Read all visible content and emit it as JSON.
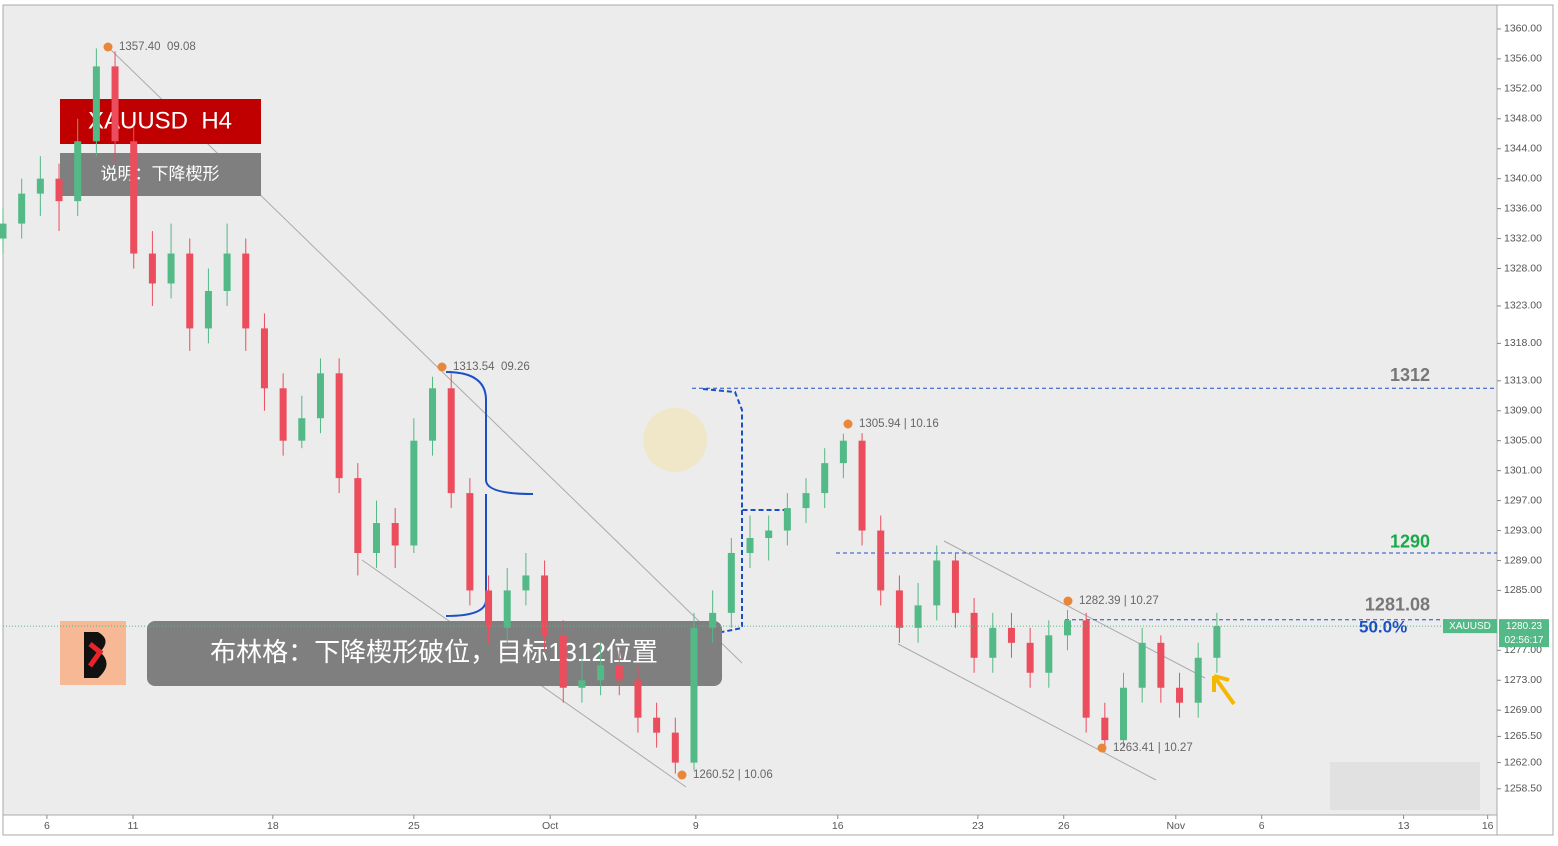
{
  "chart_data": {
    "type": "candlestick",
    "x": [
      0,
      1,
      2,
      3,
      4,
      5,
      6,
      7,
      8,
      9,
      10,
      11,
      12,
      13,
      14,
      15,
      16,
      17,
      18,
      19,
      20,
      21,
      22,
      23,
      24,
      25,
      26,
      27,
      28,
      29,
      30,
      31,
      32,
      33,
      34,
      35,
      36,
      37,
      38,
      39,
      40,
      41,
      42,
      43,
      44,
      45,
      46,
      47,
      48,
      49,
      50,
      51,
      52,
      53,
      54,
      55,
      56,
      57,
      58,
      59,
      60,
      61,
      62,
      63,
      64,
      65
    ],
    "ohlc": [
      [
        1332,
        1336,
        1330,
        1334
      ],
      [
        1334,
        1340,
        1332,
        1338
      ],
      [
        1338,
        1343,
        1335,
        1340
      ],
      [
        1340,
        1342,
        1333,
        1337
      ],
      [
        1337,
        1348,
        1335,
        1345
      ],
      [
        1345,
        1357.4,
        1343,
        1355
      ],
      [
        1355,
        1357,
        1342,
        1345
      ],
      [
        1345,
        1347,
        1328,
        1330
      ],
      [
        1330,
        1333,
        1323,
        1326
      ],
      [
        1326,
        1334,
        1324,
        1330
      ],
      [
        1330,
        1332,
        1317,
        1320
      ],
      [
        1320,
        1328,
        1318,
        1325
      ],
      [
        1325,
        1334,
        1323,
        1330
      ],
      [
        1330,
        1332,
        1317,
        1320
      ],
      [
        1320,
        1322,
        1309,
        1312
      ],
      [
        1312,
        1314,
        1303,
        1305
      ],
      [
        1305,
        1311,
        1304,
        1308
      ],
      [
        1308,
        1316,
        1306,
        1314
      ],
      [
        1314,
        1316,
        1298,
        1300
      ],
      [
        1300,
        1302,
        1287,
        1290
      ],
      [
        1290,
        1297,
        1288,
        1294
      ],
      [
        1294,
        1296,
        1288,
        1291
      ],
      [
        1291,
        1308,
        1290,
        1305
      ],
      [
        1305,
        1313.54,
        1303,
        1312
      ],
      [
        1312,
        1314,
        1296,
        1298
      ],
      [
        1298,
        1300,
        1283,
        1285
      ],
      [
        1285,
        1287,
        1278,
        1280
      ],
      [
        1280,
        1288,
        1278,
        1285
      ],
      [
        1285,
        1290,
        1283,
        1287
      ],
      [
        1287,
        1289,
        1277,
        1279
      ],
      [
        1279,
        1281,
        1270,
        1272
      ],
      [
        1272,
        1276,
        1270,
        1273
      ],
      [
        1273,
        1278,
        1271,
        1275
      ],
      [
        1275,
        1277,
        1271,
        1273
      ],
      [
        1273,
        1275,
        1266,
        1268
      ],
      [
        1268,
        1270,
        1264,
        1266
      ],
      [
        1266,
        1268,
        1260.52,
        1262
      ],
      [
        1262,
        1282,
        1261,
        1280
      ],
      [
        1280,
        1285,
        1278,
        1282
      ],
      [
        1282,
        1292,
        1280,
        1290
      ],
      [
        1290,
        1295,
        1288,
        1292
      ],
      [
        1292,
        1295,
        1289,
        1293
      ],
      [
        1293,
        1298,
        1291,
        1296
      ],
      [
        1296,
        1300,
        1294,
        1298
      ],
      [
        1298,
        1304,
        1296,
        1302
      ],
      [
        1302,
        1305.94,
        1300,
        1305
      ],
      [
        1305,
        1306,
        1291,
        1293
      ],
      [
        1293,
        1295,
        1283,
        1285
      ],
      [
        1285,
        1287,
        1278,
        1280
      ],
      [
        1280,
        1286,
        1278,
        1283
      ],
      [
        1283,
        1291,
        1281,
        1289
      ],
      [
        1289,
        1290,
        1280,
        1282
      ],
      [
        1282,
        1284,
        1274,
        1276
      ],
      [
        1276,
        1282,
        1274,
        1280
      ],
      [
        1280,
        1282,
        1276,
        1278
      ],
      [
        1278,
        1280,
        1272,
        1274
      ],
      [
        1274,
        1281,
        1272,
        1279
      ],
      [
        1279,
        1282.39,
        1277,
        1281
      ],
      [
        1281,
        1282,
        1266,
        1268
      ],
      [
        1268,
        1270,
        1263.41,
        1265
      ],
      [
        1265,
        1274,
        1264,
        1272
      ],
      [
        1272,
        1280,
        1270,
        1278
      ],
      [
        1278,
        1279,
        1270,
        1272
      ],
      [
        1272,
        1274,
        1268,
        1270
      ],
      [
        1270,
        1278,
        1268,
        1276
      ],
      [
        1276,
        1282,
        1274,
        1280.23
      ]
    ],
    "up_color": "#53b987",
    "down_color": "#eb4d5c",
    "xlim": [
      0,
      80
    ],
    "xticks": [
      {
        "value": 2.35,
        "label": "6"
      },
      {
        "value": 6.96,
        "label": "11"
      },
      {
        "value": 14.45,
        "label": "18"
      },
      {
        "value": 22.0,
        "label": "25"
      },
      {
        "value": 29.3,
        "label": "Oct"
      },
      {
        "value": 37.1,
        "label": "9"
      },
      {
        "value": 44.7,
        "label": "16"
      },
      {
        "value": 52.2,
        "label": "23"
      },
      {
        "value": 56.8,
        "label": "26"
      },
      {
        "value": 62.8,
        "label": "Nov"
      },
      {
        "value": 67.4,
        "label": "6"
      },
      {
        "value": 75.0,
        "label": "13"
      },
      {
        "value": 79.5,
        "label": "16"
      }
    ],
    "ylim": [
      1255.0,
      1363.2
    ],
    "yticks": [
      {
        "value": 1360,
        "label": "1360.00"
      },
      {
        "value": 1356,
        "label": "1356.00"
      },
      {
        "value": 1352,
        "label": "1352.00"
      },
      {
        "value": 1348,
        "label": "1348.00"
      },
      {
        "value": 1344,
        "label": "1344.00"
      },
      {
        "value": 1340,
        "label": "1340.00"
      },
      {
        "value": 1336,
        "label": "1336.00"
      },
      {
        "value": 1332,
        "label": "1332.00"
      },
      {
        "value": 1328,
        "label": "1328.00"
      },
      {
        "value": 1323,
        "label": "1323.00"
      },
      {
        "value": 1318,
        "label": "1318.00"
      },
      {
        "value": 1313,
        "label": "1313.00"
      },
      {
        "value": 1309,
        "label": "1309.00"
      },
      {
        "value": 1305,
        "label": "1305.00"
      },
      {
        "value": 1301,
        "label": "1301.00"
      },
      {
        "value": 1297,
        "label": "1297.00"
      },
      {
        "value": 1293,
        "label": "1293.00"
      },
      {
        "value": 1289,
        "label": "1289.00"
      },
      {
        "value": 1285,
        "label": "1285.00"
      },
      {
        "value": 1277,
        "label": "1277.00"
      },
      {
        "value": 1273,
        "label": "1273.00"
      },
      {
        "value": 1269,
        "label": "1269.00"
      },
      {
        "value": 1265.5,
        "label": "1265.50"
      },
      {
        "value": 1262,
        "label": "1262.00"
      },
      {
        "value": 1258.5,
        "label": "1258.50"
      }
    ],
    "grid": false,
    "levels": [
      {
        "value": 1312,
        "color": "#777777"
      },
      {
        "value": 1290,
        "color": "#1aa84a"
      },
      {
        "value": 1281.08,
        "color": "#777777"
      }
    ],
    "fib_label": "50.0%",
    "symbol": "XAUUSD",
    "countdown": "02:56:17",
    "annotations": [
      "1357.40  09.08",
      "1313.54  09.26",
      "1305.94 | 10.16",
      "1282.39 | 10.27",
      "1263.41 | 10.27",
      "1260.52 | 10.06"
    ],
    "title": "XAUUSD  H4",
    "subtitle": "说明：下降楔形",
    "note": "布林格：下降楔形破位，目标1312位置"
  }
}
